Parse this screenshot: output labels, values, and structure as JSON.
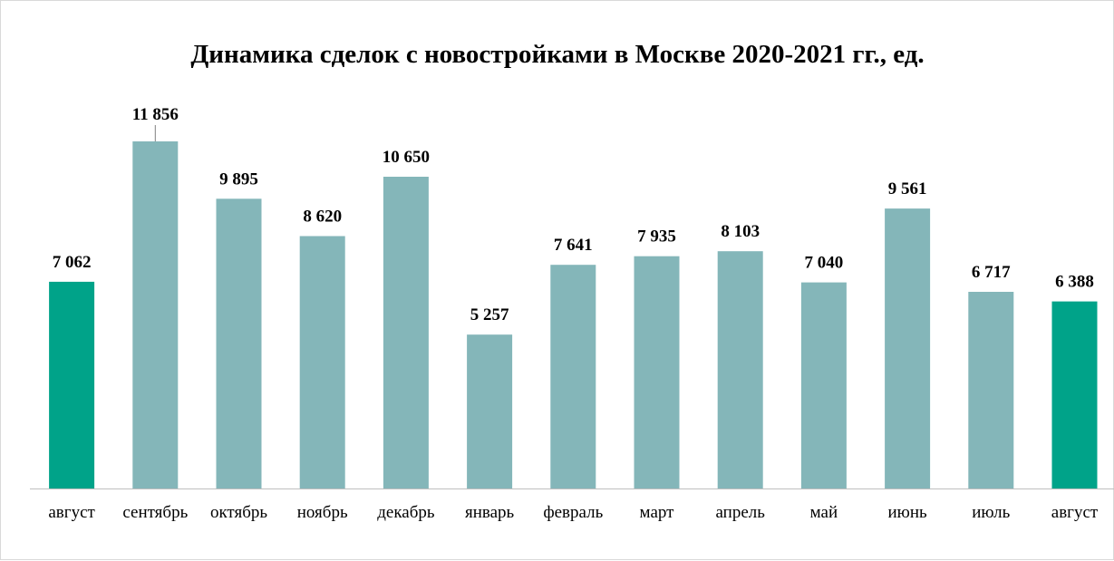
{
  "chart_data": {
    "type": "bar",
    "title": "Динамика сделок с новостройками в Москве 2020-2021 гг., ед.",
    "xlabel": "",
    "ylabel": "",
    "ylim": [
      0,
      12500
    ],
    "grid": false,
    "legend": "none",
    "categories": [
      "август",
      "сентябрь",
      "октябрь",
      "ноябрь",
      "декабрь",
      "январь",
      "февраль",
      "март",
      "апрель",
      "май",
      "июнь",
      "июль",
      "август"
    ],
    "values": [
      7062,
      11856,
      9895,
      8620,
      10650,
      5257,
      7641,
      7935,
      8103,
      7040,
      9561,
      6717,
      6388
    ],
    "value_labels": [
      "7 062",
      "11 856",
      "9 895",
      "8 620",
      "10 650",
      "5 257",
      "7 641",
      "7 935",
      "8 103",
      "7 040",
      "9 561",
      "6 717",
      "6 388"
    ],
    "highlighted": [
      0,
      12
    ],
    "colors": {
      "default_bar": "#84b6b9",
      "highlight_bar": "#00a389",
      "axis": "#bfbfbf",
      "text": "#000000"
    }
  }
}
